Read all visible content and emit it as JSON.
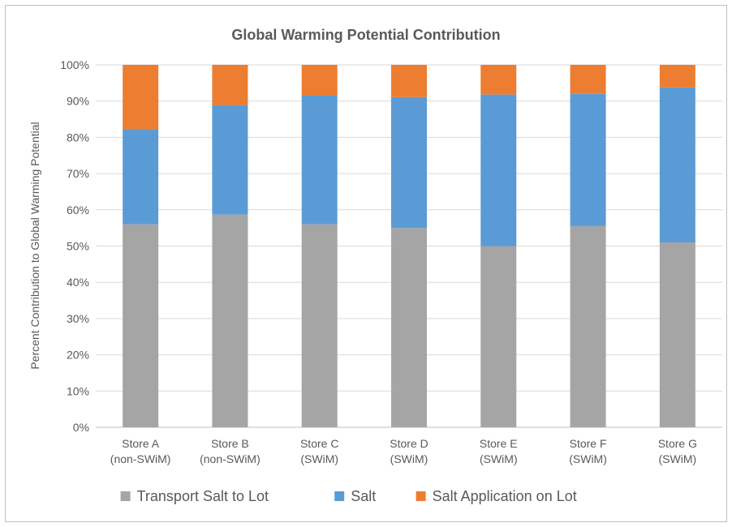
{
  "chart_data": {
    "type": "bar",
    "stacked": true,
    "title": "Global Warming Potential Contribution",
    "xlabel": "",
    "ylabel": "Percent Contribution to Global Warming Potential",
    "ylim": [
      0,
      100
    ],
    "yticks": [
      "0%",
      "10%",
      "20%",
      "30%",
      "40%",
      "50%",
      "60%",
      "70%",
      "80%",
      "90%",
      "100%"
    ],
    "grid": true,
    "legend_position": "bottom",
    "categories": [
      [
        "Store A",
        "(non-SWiM)"
      ],
      [
        "Store B",
        "(non-SWiM)"
      ],
      [
        "Store C",
        "(SWiM)"
      ],
      [
        "Store D",
        "(SWiM)"
      ],
      [
        "Store E",
        "(SWiM)"
      ],
      [
        "Store F",
        "(SWiM)"
      ],
      [
        "Store G",
        "(SWiM)"
      ]
    ],
    "series": [
      {
        "name": "Transport Salt to Lot",
        "color": "#a5a5a5",
        "values": [
          56,
          58.7,
          56,
          55,
          50,
          55.5,
          51
        ]
      },
      {
        "name": "Salt",
        "color": "#5b9bd5",
        "values": [
          26.2,
          30.2,
          35.5,
          36.1,
          41.8,
          36.5,
          42.8
        ]
      },
      {
        "name": "Salt Application on Lot",
        "color": "#ed7d31",
        "values": [
          17.8,
          11.1,
          8.5,
          8.9,
          8.2,
          8.0,
          6.2
        ]
      }
    ]
  }
}
